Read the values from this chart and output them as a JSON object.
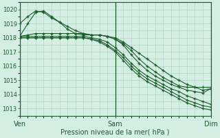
{
  "bg_color": "#d4eee4",
  "grid_color": "#a8cdb8",
  "line_color": "#1a5c2a",
  "xlabel": "Pression niveau de la mer( hPa )",
  "xlabel_color": "#1a5c2a",
  "tick_color": "#1a5c2a",
  "ylim": [
    1012.5,
    1020.5
  ],
  "yticks": [
    1013,
    1014,
    1015,
    1016,
    1017,
    1018,
    1019,
    1020
  ],
  "xtick_labels": [
    "Ven",
    "Sam",
    "Dim"
  ],
  "xtick_positions": [
    0,
    12,
    24
  ],
  "series": [
    [
      1019.0,
      1019.5,
      1019.9,
      1019.8,
      1019.4,
      1019.1,
      1018.8,
      1018.5,
      1018.3,
      1018.2,
      1018.2,
      1018.1,
      1018.0,
      1017.7,
      1017.3,
      1016.9,
      1016.5,
      1016.1,
      1015.7,
      1015.3,
      1015.0,
      1014.7,
      1014.5,
      1014.3,
      1014.4
    ],
    [
      1018.1,
      1019.0,
      1019.8,
      1019.9,
      1019.5,
      1019.1,
      1018.6,
      1018.3,
      1018.2,
      1018.2,
      1018.2,
      1018.1,
      1017.9,
      1017.6,
      1017.1,
      1016.5,
      1016.0,
      1015.6,
      1015.2,
      1014.9,
      1014.6,
      1014.5,
      1014.5,
      1014.5,
      1014.5
    ],
    [
      1018.1,
      1018.2,
      1018.3,
      1018.3,
      1018.3,
      1018.3,
      1018.3,
      1018.3,
      1018.3,
      1018.2,
      1018.2,
      1018.1,
      1017.9,
      1017.5,
      1016.8,
      1016.2,
      1015.7,
      1015.3,
      1015.0,
      1014.7,
      1014.5,
      1014.3,
      1014.2,
      1014.1,
      1014.4
    ],
    [
      1018.1,
      1018.1,
      1018.1,
      1018.1,
      1018.1,
      1018.1,
      1018.1,
      1018.1,
      1018.1,
      1018.0,
      1017.9,
      1017.7,
      1017.3,
      1016.8,
      1016.2,
      1015.7,
      1015.3,
      1015.0,
      1014.7,
      1014.4,
      1014.2,
      1013.9,
      1013.7,
      1013.5,
      1013.3
    ],
    [
      1018.0,
      1018.0,
      1018.0,
      1018.0,
      1018.0,
      1018.0,
      1018.0,
      1018.0,
      1018.0,
      1017.9,
      1017.8,
      1017.5,
      1017.1,
      1016.6,
      1016.0,
      1015.5,
      1015.1,
      1014.8,
      1014.5,
      1014.2,
      1013.9,
      1013.6,
      1013.4,
      1013.2,
      1013.1
    ],
    [
      1018.0,
      1018.0,
      1018.0,
      1018.0,
      1018.0,
      1018.0,
      1018.0,
      1018.0,
      1018.0,
      1017.9,
      1017.7,
      1017.4,
      1017.0,
      1016.4,
      1015.8,
      1015.3,
      1014.9,
      1014.6,
      1014.3,
      1014.0,
      1013.7,
      1013.4,
      1013.2,
      1013.0,
      1012.9
    ]
  ]
}
